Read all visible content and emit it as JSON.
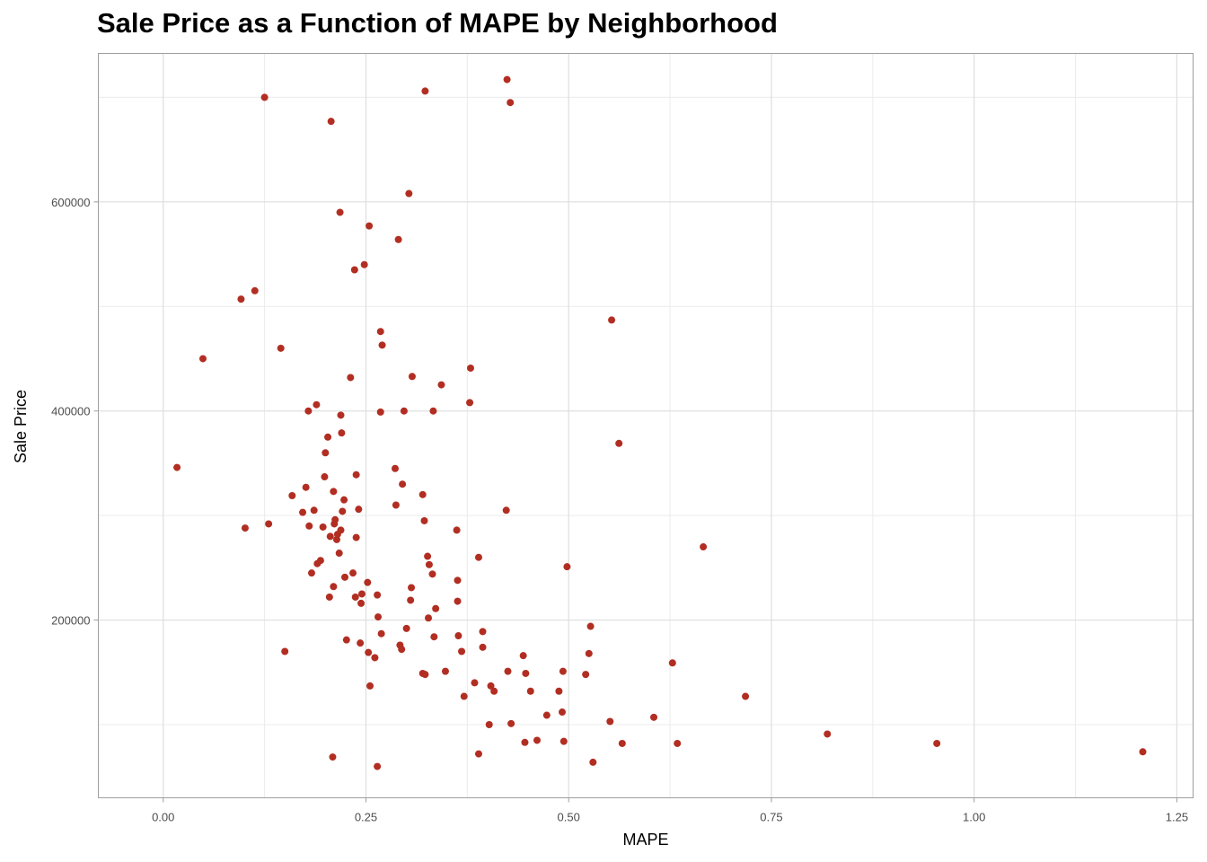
{
  "chart_data": {
    "type": "scatter",
    "title": "Sale Price as a Function of MAPE by Neighborhood",
    "xlabel": "MAPE",
    "ylabel": "Sale Price",
    "xlim": [
      -0.08,
      1.27
    ],
    "ylim": [
      30000,
      742000
    ],
    "xticks": [
      0.0,
      0.25,
      0.5,
      0.75,
      1.0,
      1.25
    ],
    "xtick_labels": [
      "0.00",
      "0.25",
      "0.50",
      "0.75",
      "1.00",
      "1.25"
    ],
    "yticks": [
      200000,
      400000,
      600000
    ],
    "ytick_labels": [
      "200000",
      "400000",
      "600000"
    ],
    "grid": true,
    "point_color": "#b22e22",
    "series": [
      {
        "points": [
          [
            0.017,
            346000
          ],
          [
            0.049,
            450000
          ],
          [
            0.096,
            507000
          ],
          [
            0.101,
            288000
          ],
          [
            0.113,
            515000
          ],
          [
            0.125,
            700000
          ],
          [
            0.13,
            292000
          ],
          [
            0.145,
            460000
          ],
          [
            0.15,
            170000
          ],
          [
            0.159,
            319000
          ],
          [
            0.172,
            303000
          ],
          [
            0.176,
            327000
          ],
          [
            0.179,
            400000
          ],
          [
            0.18,
            290000
          ],
          [
            0.183,
            245000
          ],
          [
            0.186,
            305000
          ],
          [
            0.189,
            406000
          ],
          [
            0.19,
            254000
          ],
          [
            0.194,
            257000
          ],
          [
            0.197,
            289000
          ],
          [
            0.199,
            337000
          ],
          [
            0.2,
            360000
          ],
          [
            0.203,
            375000
          ],
          [
            0.205,
            222000
          ],
          [
            0.206,
            280000
          ],
          [
            0.207,
            677000
          ],
          [
            0.209,
            69000
          ],
          [
            0.21,
            232000
          ],
          [
            0.21,
            323000
          ],
          [
            0.211,
            292000
          ],
          [
            0.212,
            296000
          ],
          [
            0.214,
            277000
          ],
          [
            0.215,
            282000
          ],
          [
            0.217,
            264000
          ],
          [
            0.218,
            590000
          ],
          [
            0.219,
            286000
          ],
          [
            0.219,
            396000
          ],
          [
            0.22,
            379000
          ],
          [
            0.221,
            304000
          ],
          [
            0.223,
            315000
          ],
          [
            0.224,
            241000
          ],
          [
            0.226,
            181000
          ],
          [
            0.231,
            432000
          ],
          [
            0.234,
            245000
          ],
          [
            0.236,
            535000
          ],
          [
            0.237,
            222000
          ],
          [
            0.238,
            339000
          ],
          [
            0.238,
            279000
          ],
          [
            0.241,
            306000
          ],
          [
            0.243,
            178000
          ],
          [
            0.244,
            216000
          ],
          [
            0.245,
            225000
          ],
          [
            0.248,
            540000
          ],
          [
            0.252,
            236000
          ],
          [
            0.253,
            169000
          ],
          [
            0.254,
            577000
          ],
          [
            0.255,
            137000
          ],
          [
            0.261,
            164000
          ],
          [
            0.264,
            60000
          ],
          [
            0.264,
            224000
          ],
          [
            0.265,
            203000
          ],
          [
            0.268,
            476000
          ],
          [
            0.268,
            399000
          ],
          [
            0.269,
            187000
          ],
          [
            0.27,
            463000
          ],
          [
            0.286,
            345000
          ],
          [
            0.287,
            310000
          ],
          [
            0.29,
            564000
          ],
          [
            0.292,
            176000
          ],
          [
            0.294,
            172000
          ],
          [
            0.295,
            330000
          ],
          [
            0.297,
            400000
          ],
          [
            0.3,
            192000
          ],
          [
            0.303,
            608000
          ],
          [
            0.305,
            219000
          ],
          [
            0.306,
            231000
          ],
          [
            0.307,
            433000
          ],
          [
            0.32,
            320000
          ],
          [
            0.32,
            149000
          ],
          [
            0.322,
            295000
          ],
          [
            0.323,
            706000
          ],
          [
            0.323,
            148000
          ],
          [
            0.326,
            261000
          ],
          [
            0.327,
            202000
          ],
          [
            0.328,
            253000
          ],
          [
            0.332,
            244000
          ],
          [
            0.333,
            400000
          ],
          [
            0.334,
            184000
          ],
          [
            0.336,
            211000
          ],
          [
            0.343,
            425000
          ],
          [
            0.348,
            151000
          ],
          [
            0.362,
            286000
          ],
          [
            0.363,
            238000
          ],
          [
            0.363,
            218000
          ],
          [
            0.364,
            185000
          ],
          [
            0.368,
            170000
          ],
          [
            0.371,
            127000
          ],
          [
            0.378,
            408000
          ],
          [
            0.379,
            441000
          ],
          [
            0.384,
            140000
          ],
          [
            0.389,
            260000
          ],
          [
            0.389,
            72000
          ],
          [
            0.394,
            189000
          ],
          [
            0.394,
            174000
          ],
          [
            0.402,
            100000
          ],
          [
            0.404,
            137000
          ],
          [
            0.408,
            132000
          ],
          [
            0.423,
            305000
          ],
          [
            0.424,
            717000
          ],
          [
            0.425,
            151000
          ],
          [
            0.428,
            695000
          ],
          [
            0.429,
            101000
          ],
          [
            0.444,
            166000
          ],
          [
            0.446,
            83000
          ],
          [
            0.447,
            149000
          ],
          [
            0.453,
            132000
          ],
          [
            0.461,
            85000
          ],
          [
            0.473,
            109000
          ],
          [
            0.488,
            132000
          ],
          [
            0.492,
            112000
          ],
          [
            0.493,
            151000
          ],
          [
            0.494,
            84000
          ],
          [
            0.498,
            251000
          ],
          [
            0.521,
            148000
          ],
          [
            0.525,
            168000
          ],
          [
            0.527,
            194000
          ],
          [
            0.53,
            64000
          ],
          [
            0.553,
            487000
          ],
          [
            0.551,
            103000
          ],
          [
            0.562,
            369000
          ],
          [
            0.566,
            82000
          ],
          [
            0.605,
            107000
          ],
          [
            0.628,
            159000
          ],
          [
            0.634,
            82000
          ],
          [
            0.666,
            270000
          ],
          [
            0.718,
            127000
          ],
          [
            0.819,
            91000
          ],
          [
            0.954,
            82000
          ],
          [
            1.208,
            74000
          ]
        ]
      }
    ]
  }
}
